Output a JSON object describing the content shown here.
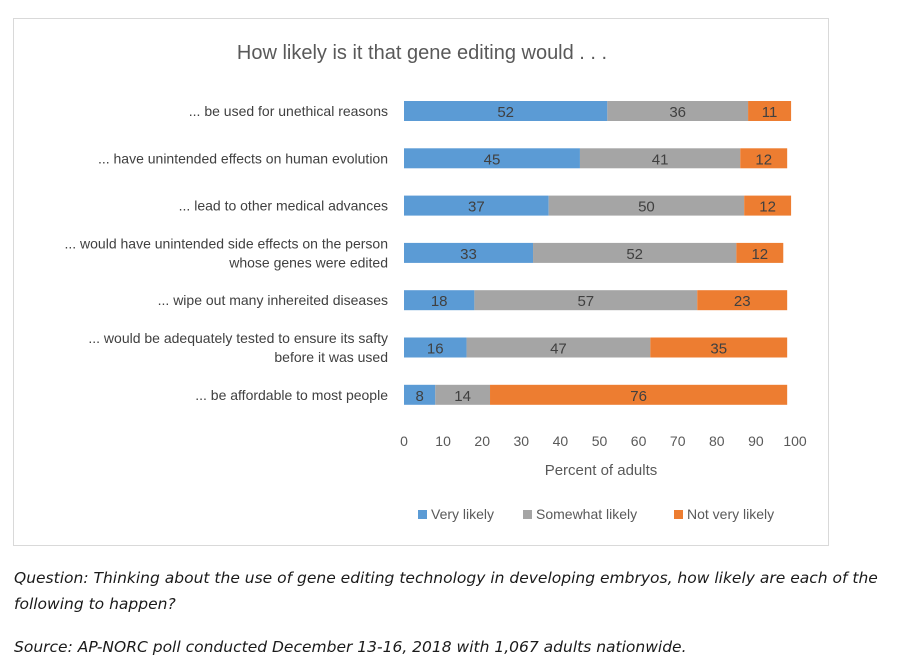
{
  "chart_data": {
    "type": "bar",
    "orientation": "horizontal",
    "stacked": true,
    "title": "How likely is it that gene editing would . . .",
    "xlabel": "Percent of adults",
    "ylabel": "",
    "xlim": [
      0,
      100
    ],
    "xticks": [
      "0",
      "10",
      "20",
      "30",
      "40",
      "50",
      "60",
      "70",
      "80",
      "90",
      "100"
    ],
    "grid": false,
    "legend_position": "bottom",
    "categories": [
      [
        "... be used for unethical reasons"
      ],
      [
        "... have unintended effects on human evolution"
      ],
      [
        "... lead to other medical advances"
      ],
      [
        "... would have unintended side effects on the person",
        "whose genes were edited"
      ],
      [
        "... wipe out many inhereited diseases"
      ],
      [
        "... would be adequately tested to ensure its safty",
        "before it was used"
      ],
      [
        "... be affordable to most people"
      ]
    ],
    "series": [
      {
        "name": "Very likely",
        "color": "#5b9bd5",
        "values": [
          52,
          45,
          37,
          33,
          18,
          16,
          8
        ]
      },
      {
        "name": "Somewhat likely",
        "color": "#a5a5a5",
        "values": [
          36,
          41,
          50,
          52,
          57,
          47,
          14
        ]
      },
      {
        "name": "Not very likely",
        "color": "#ed7d31",
        "values": [
          11,
          12,
          12,
          12,
          23,
          35,
          76
        ]
      }
    ]
  },
  "caption": {
    "question": "Question: Thinking about the use of gene editing technology in developing embryos, how likely are each of the following to happen?",
    "source": "Source: AP-NORC poll conducted December 13-16, 2018 with 1,067 adults nationwide."
  }
}
